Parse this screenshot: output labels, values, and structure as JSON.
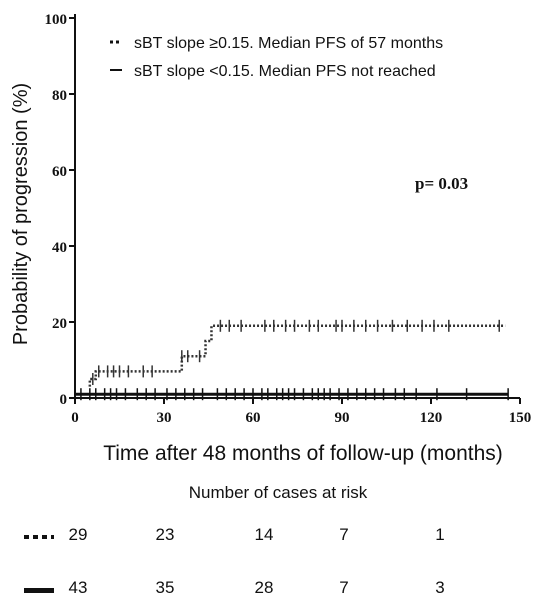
{
  "chart_data": {
    "type": "line",
    "xlabel": "Time after 48 months of follow-up (months)",
    "ylabel": "Probability of progression (%)",
    "xlim": [
      0,
      150
    ],
    "ylim": [
      0,
      100
    ],
    "xticks": [
      "0",
      "30",
      "60",
      "90",
      "120",
      "150"
    ],
    "yticks": [
      "0",
      "20",
      "40",
      "60",
      "80",
      "100"
    ],
    "annotation": "p= 0.03",
    "legend_position": "top-right",
    "series": [
      {
        "name": "sBT slope ≥0.15. Median PFS of 57 months",
        "style": "dotted",
        "color": "#333333",
        "x": [
          5,
          5,
          7,
          7,
          36,
          36,
          44,
          44,
          46,
          46,
          145
        ],
        "y": [
          3,
          5,
          5,
          7,
          7,
          11,
          11,
          15,
          15,
          19,
          19
        ],
        "censor_x": [
          6,
          8,
          11,
          13,
          15,
          18,
          23,
          26,
          36,
          38,
          42,
          49,
          52,
          56,
          64,
          67,
          71,
          74,
          79,
          82,
          88,
          90,
          94,
          98,
          102,
          107,
          112,
          117,
          121,
          126,
          143
        ]
      },
      {
        "name": "sBT slope <0.15. Median PFS not reached",
        "style": "solid",
        "color": "#111111",
        "x": [
          0,
          146
        ],
        "y": [
          1,
          1
        ],
        "censor_x": [
          2,
          5,
          7,
          10,
          12,
          14,
          17,
          21,
          24,
          27,
          31,
          34,
          37,
          40,
          43,
          48,
          51,
          54,
          57,
          60,
          63,
          65,
          68,
          70,
          72,
          74,
          77,
          80,
          82,
          84,
          86,
          89,
          92,
          95,
          98,
          101,
          104,
          108,
          111,
          115,
          122,
          132,
          146
        ]
      }
    ]
  },
  "risk_table": {
    "title": "Number of cases at risk",
    "rows": [
      {
        "key_style": "dotted",
        "values": [
          "29",
          "23",
          "14",
          "7",
          "1"
        ]
      },
      {
        "key_style": "solid",
        "values": [
          "43",
          "35",
          "28",
          "7",
          "3"
        ]
      }
    ]
  }
}
